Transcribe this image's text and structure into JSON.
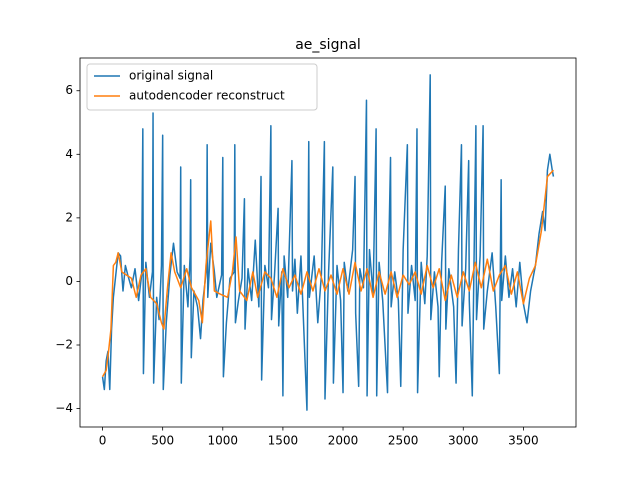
{
  "chart_data": {
    "type": "line",
    "title": "ae_signal",
    "xlim": [
      -187.5,
      3937.5
    ],
    "ylim": [
      -4.58,
      7.03
    ],
    "xticks": [
      0,
      500,
      1000,
      1500,
      2000,
      2500,
      3000,
      3500
    ],
    "yticks": [
      {
        "value": -4,
        "label": "−4"
      },
      {
        "value": -2,
        "label": "−2"
      },
      0,
      2,
      4,
      6
    ],
    "grid": false,
    "legend": "upper-left",
    "series": [
      {
        "name": "original signal",
        "color": "#1f77b4",
        "x": [
          0,
          15,
          30,
          45,
          60,
          75,
          90,
          110,
          130,
          150,
          170,
          190,
          210,
          240,
          270,
          300,
          325,
          335,
          340,
          360,
          390,
          415,
          420,
          425,
          450,
          470,
          490,
          500,
          505,
          530,
          560,
          590,
          620,
          645,
          650,
          655,
          680,
          710,
          728,
          733,
          738,
          760,
          790,
          815,
          835,
          865,
          870,
          875,
          900,
          930,
          950,
          990,
          1000,
          1005,
          1030,
          1060,
          1095,
          1100,
          1105,
          1130,
          1160,
          1180,
          1185,
          1210,
          1240,
          1270,
          1300,
          1318,
          1323,
          1350,
          1380,
          1400,
          1405,
          1430,
          1460,
          1465,
          1490,
          1500,
          1510,
          1540,
          1575,
          1580,
          1600,
          1620,
          1650,
          1700,
          1715,
          1720,
          1760,
          1790,
          1820,
          1845,
          1850,
          1880,
          1915,
          1920,
          1950,
          1980,
          2000,
          2010,
          2040,
          2080,
          2100,
          2105,
          2130,
          2140,
          2170,
          2195,
          2200,
          2220,
          2250,
          2275,
          2280,
          2300,
          2330,
          2370,
          2380,
          2395,
          2400,
          2430,
          2460,
          2480,
          2500,
          2535,
          2540,
          2570,
          2600,
          2615,
          2620,
          2650,
          2680,
          2700,
          2725,
          2730,
          2760,
          2790,
          2800,
          2820,
          2850,
          2855,
          2880,
          2920,
          2940,
          2960,
          2985,
          2990,
          3020,
          3045,
          3050,
          3075,
          3090,
          3105,
          3110,
          3140,
          3165,
          3170,
          3200,
          3240,
          3270,
          3300,
          3315,
          3320,
          3350,
          3380,
          3410,
          3440,
          3470,
          3500,
          3530,
          3560,
          3600,
          3630,
          3660,
          3680,
          3700,
          3720,
          3740,
          3750
        ],
        "values": [
          -3.0,
          -3.4,
          -2.5,
          -2.2,
          -3.4,
          -1.5,
          -0.5,
          0.2,
          0.9,
          0.8,
          -0.3,
          0.5,
          0.2,
          -0.2,
          0.4,
          -0.6,
          0.2,
          4.8,
          -2.9,
          0.6,
          -0.5,
          0.3,
          5.3,
          -3.2,
          -0.5,
          -1.2,
          0.5,
          4.6,
          -3.4,
          -1.3,
          0.2,
          1.2,
          0.3,
          0.1,
          3.6,
          -3.2,
          0.5,
          -0.8,
          0.8,
          3.2,
          -2.4,
          -0.3,
          -0.8,
          -1.8,
          -0.6,
          0.4,
          4.3,
          -0.5,
          1.2,
          0.3,
          -0.5,
          0.2,
          3.9,
          -3.0,
          -1.3,
          0.1,
          0.3,
          4.3,
          -1.3,
          -0.6,
          0.1,
          2.6,
          -1.5,
          0.4,
          -0.6,
          1.3,
          -0.8,
          3.3,
          -3.1,
          0.5,
          -0.2,
          4.9,
          -1.2,
          0.2,
          2.3,
          -1.4,
          0.3,
          -3.6,
          0.8,
          -0.5,
          3.8,
          -0.3,
          0.7,
          -1.0,
          0.8,
          -4.05,
          4.4,
          -0.5,
          0.8,
          -1.3,
          0.2,
          4.4,
          -3.7,
          0.3,
          3.6,
          -3.2,
          0.5,
          -0.6,
          -3.5,
          0.6,
          -0.3,
          1.0,
          3.3,
          -1.0,
          -3.3,
          0.4,
          -0.2,
          5.7,
          -3.6,
          1.0,
          -0.4,
          4.8,
          -3.6,
          0.6,
          -0.6,
          -3.5,
          0.9,
          3.9,
          -0.8,
          0.3,
          -0.6,
          -3.3,
          1.0,
          4.3,
          -1.0,
          0.5,
          -0.6,
          4.8,
          -3.5,
          0.6,
          -0.7,
          0.8,
          6.5,
          -1.2,
          0.3,
          -0.8,
          -3.0,
          0.6,
          3.0,
          -1.5,
          0.4,
          -0.8,
          -3.2,
          1.0,
          4.3,
          -1.4,
          0.4,
          3.8,
          -0.6,
          -3.6,
          0.8,
          4.9,
          -1.2,
          0.8,
          4.9,
          -1.5,
          -0.3,
          0.9,
          -0.8,
          -2.9,
          3.2,
          -0.6,
          0.8,
          -0.5,
          0.4,
          -0.8,
          0.6,
          -0.7,
          -1.3,
          -0.3,
          0.5,
          1.5,
          2.2,
          1.6,
          3.5,
          4.0,
          3.5,
          3.3
        ]
      },
      {
        "name": "autodencoder reconstruct",
        "color": "#ff7f0e",
        "x": [
          0,
          30,
          50,
          70,
          90,
          110,
          130,
          160,
          200,
          240,
          280,
          320,
          360,
          400,
          450,
          490,
          510,
          540,
          570,
          600,
          650,
          700,
          740,
          800,
          830,
          860,
          900,
          930,
          980,
          1040,
          1080,
          1110,
          1140,
          1200,
          1250,
          1290,
          1350,
          1400,
          1450,
          1500,
          1550,
          1600,
          1650,
          1700,
          1750,
          1800,
          1850,
          1900,
          1950,
          2000,
          2050,
          2100,
          2150,
          2200,
          2250,
          2300,
          2350,
          2400,
          2450,
          2500,
          2550,
          2600,
          2650,
          2700,
          2750,
          2800,
          2850,
          2900,
          2950,
          3000,
          3050,
          3100,
          3150,
          3200,
          3250,
          3300,
          3350,
          3400,
          3450,
          3500,
          3550,
          3600,
          3650,
          3700,
          3750
        ],
        "values": [
          -3.0,
          -2.8,
          -2.2,
          -1.5,
          0.5,
          0.6,
          0.9,
          0.3,
          0.2,
          0.1,
          -0.5,
          0.2,
          0.4,
          -0.5,
          -0.7,
          -1.3,
          -1.5,
          -0.2,
          0.9,
          0.3,
          -0.2,
          0.4,
          -0.2,
          -0.6,
          -1.3,
          0.5,
          1.9,
          -0.3,
          -0.4,
          -0.5,
          0.3,
          1.4,
          -0.3,
          -0.6,
          0.3,
          -0.5,
          0.3,
          0.1,
          -0.5,
          0.4,
          -0.2,
          0.2,
          -0.4,
          0.3,
          -0.3,
          0.4,
          -0.3,
          0.2,
          -0.4,
          0.4,
          -0.4,
          0.6,
          -0.3,
          0.4,
          -0.5,
          0.3,
          -0.4,
          0.3,
          -0.5,
          0.2,
          -0.1,
          0.3,
          -0.4,
          0.5,
          -0.2,
          0.4,
          -0.6,
          0.2,
          -0.5,
          0.3,
          -0.3,
          0.6,
          -0.2,
          0.7,
          -0.3,
          0.2,
          0.5,
          -0.4,
          0.3,
          -0.7,
          0.1,
          0.5,
          1.6,
          3.3,
          3.5
        ]
      }
    ]
  }
}
